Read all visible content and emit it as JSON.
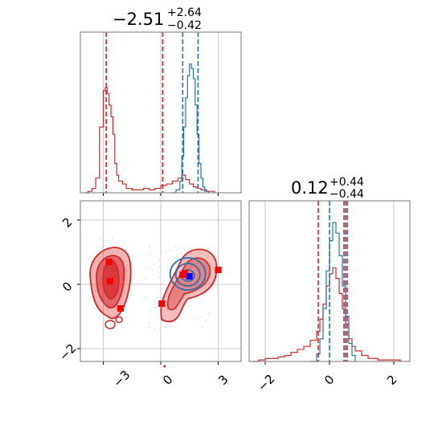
{
  "colors": {
    "red": "#d62728",
    "blue": "#1f77b4",
    "grid": "#bbbbbb",
    "marker_blue": "#0000ff",
    "marker_red": "#ff0000"
  },
  "chart_data": [
    {
      "type": "histogram",
      "panel": "marginal-x",
      "title_value": "-2.51",
      "title_plus": "+2.64",
      "title_minus": "-0.42",
      "xlim": [
        -4.2,
        4.2
      ],
      "quantile_lines": {
        "red": [
          -2.85,
          0.1
        ],
        "blue": [
          1.15,
          1.95
        ]
      },
      "series": [
        {
          "color": "red",
          "bins": [
            [
              -4.0,
              0.0
            ],
            [
              -3.8,
              0.01
            ],
            [
              -3.6,
              0.03
            ],
            [
              -3.4,
              0.1
            ],
            [
              -3.2,
              0.45
            ],
            [
              -3.0,
              0.7
            ],
            [
              -2.9,
              0.72
            ],
            [
              -2.8,
              0.68
            ],
            [
              -2.7,
              0.6
            ],
            [
              -2.6,
              0.52
            ],
            [
              -2.5,
              0.4
            ],
            [
              -2.4,
              0.2
            ],
            [
              -2.3,
              0.12
            ],
            [
              -2.2,
              0.08
            ],
            [
              -2.0,
              0.06
            ],
            [
              -1.8,
              0.03
            ],
            [
              -1.5,
              0.02
            ],
            [
              -1.2,
              0.02
            ],
            [
              -0.9,
              0.03
            ],
            [
              -0.6,
              0.02
            ],
            [
              -0.3,
              0.03
            ],
            [
              0.0,
              0.05
            ],
            [
              0.3,
              0.06
            ],
            [
              0.6,
              0.08
            ],
            [
              0.9,
              0.1
            ],
            [
              1.1,
              0.12
            ],
            [
              1.3,
              0.09
            ],
            [
              1.5,
              0.06
            ],
            [
              1.7,
              0.04
            ],
            [
              1.9,
              0.03
            ],
            [
              2.1,
              0.02
            ],
            [
              2.4,
              0.01
            ],
            [
              2.8,
              0.0
            ]
          ]
        },
        {
          "color": "blue",
          "bins": [
            [
              0.6,
              0.0
            ],
            [
              0.8,
              0.02
            ],
            [
              1.0,
              0.08
            ],
            [
              1.1,
              0.25
            ],
            [
              1.2,
              0.45
            ],
            [
              1.3,
              0.65
            ],
            [
              1.4,
              0.8
            ],
            [
              1.5,
              0.88
            ],
            [
              1.6,
              0.85
            ],
            [
              1.7,
              0.78
            ],
            [
              1.8,
              0.6
            ],
            [
              1.9,
              0.4
            ],
            [
              2.0,
              0.2
            ],
            [
              2.1,
              0.1
            ],
            [
              2.2,
              0.04
            ],
            [
              2.3,
              0.01
            ],
            [
              2.5,
              0.0
            ]
          ]
        }
      ]
    },
    {
      "type": "histogram",
      "panel": "marginal-y",
      "title_value": "0.12",
      "title_plus": "+0.44",
      "title_minus": "-0.44",
      "xlim": [
        -2.5,
        2.5
      ],
      "xticks": [
        -2,
        0,
        2
      ],
      "quantile_lines": {
        "red": [
          -0.35,
          0.45,
          0.55
        ],
        "blue": [
          0.0,
          0.5
        ]
      },
      "series": [
        {
          "color": "red",
          "bins": [
            [
              -2.4,
              0.0
            ],
            [
              -2.2,
              0.01
            ],
            [
              -2.0,
              0.02
            ],
            [
              -1.8,
              0.02
            ],
            [
              -1.6,
              0.03
            ],
            [
              -1.4,
              0.04
            ],
            [
              -1.2,
              0.06
            ],
            [
              -1.0,
              0.08
            ],
            [
              -0.8,
              0.1
            ],
            [
              -0.6,
              0.14
            ],
            [
              -0.4,
              0.2
            ],
            [
              -0.3,
              0.28
            ],
            [
              -0.2,
              0.38
            ],
            [
              -0.1,
              0.5
            ],
            [
              0.0,
              0.58
            ],
            [
              0.1,
              0.62
            ],
            [
              0.2,
              0.55
            ],
            [
              0.3,
              0.45
            ],
            [
              0.4,
              0.35
            ],
            [
              0.5,
              0.25
            ],
            [
              0.6,
              0.15
            ],
            [
              0.7,
              0.1
            ],
            [
              0.8,
              0.07
            ],
            [
              1.0,
              0.04
            ],
            [
              1.2,
              0.02
            ],
            [
              1.5,
              0.01
            ],
            [
              1.8,
              0.01
            ],
            [
              2.2,
              0.0
            ]
          ]
        },
        {
          "color": "blue",
          "bins": [
            [
              -0.6,
              0.0
            ],
            [
              -0.4,
              0.05
            ],
            [
              -0.3,
              0.15
            ],
            [
              -0.2,
              0.35
            ],
            [
              -0.1,
              0.6
            ],
            [
              0.0,
              0.8
            ],
            [
              0.1,
              0.92
            ],
            [
              0.2,
              0.85
            ],
            [
              0.3,
              0.7
            ],
            [
              0.4,
              0.5
            ],
            [
              0.5,
              0.3
            ],
            [
              0.6,
              0.12
            ],
            [
              0.7,
              0.04
            ],
            [
              0.8,
              0.0
            ]
          ]
        }
      ]
    },
    {
      "type": "scatter",
      "panel": "joint",
      "xlim": [
        -4.2,
        4.2
      ],
      "ylim": [
        -2.4,
        2.6
      ],
      "xticks": [
        -3,
        0,
        3
      ],
      "yticks": [
        -2,
        0,
        2
      ],
      "red_markers": [
        [
          -2.7,
          0.7
        ],
        [
          -2.65,
          0.1
        ],
        [
          -2.1,
          -0.75
        ],
        [
          0.05,
          -0.6
        ],
        [
          1.15,
          0.3
        ],
        [
          1.25,
          0.35
        ],
        [
          3.0,
          0.45
        ]
      ],
      "blue_markers": [
        [
          1.5,
          0.25
        ]
      ],
      "red_contour_centers": [
        [
          -2.6,
          0.15
        ],
        [
          0.9,
          -0.1
        ]
      ],
      "blue_contour_center": [
        1.5,
        0.4
      ]
    }
  ],
  "labels": {
    "tick_m3": "−3",
    "tick_0": "0",
    "tick_3": "3",
    "tick_m2": "−2",
    "tick_2": "2"
  }
}
